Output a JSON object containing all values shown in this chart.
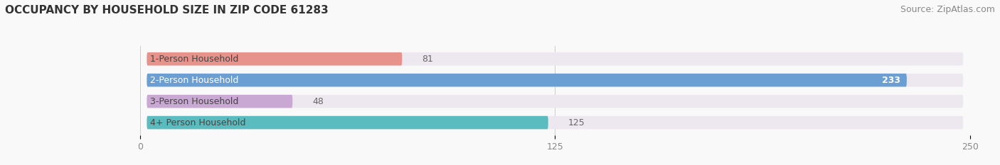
{
  "title": "OCCUPANCY BY HOUSEHOLD SIZE IN ZIP CODE 61283",
  "source": "Source: ZipAtlas.com",
  "categories": [
    "1-Person Household",
    "2-Person Household",
    "3-Person Household",
    "4+ Person Household"
  ],
  "values": [
    81,
    233,
    48,
    125
  ],
  "bar_colors": [
    "#e8928c",
    "#6b9fd4",
    "#c9a8d4",
    "#5bbcbf"
  ],
  "bg_colors": [
    "#ede8f0",
    "#ede8f0",
    "#ede8f0",
    "#ede8f0"
  ],
  "xlim": [
    0,
    250
  ],
  "xticks": [
    0,
    125,
    250
  ],
  "bar_height": 0.62,
  "title_fontsize": 11,
  "source_fontsize": 9,
  "tick_fontsize": 9,
  "label_fontsize": 9,
  "category_fontsize": 9,
  "figsize": [
    14.06,
    2.33
  ],
  "dpi": 100,
  "background_color": "#f9f9f9"
}
